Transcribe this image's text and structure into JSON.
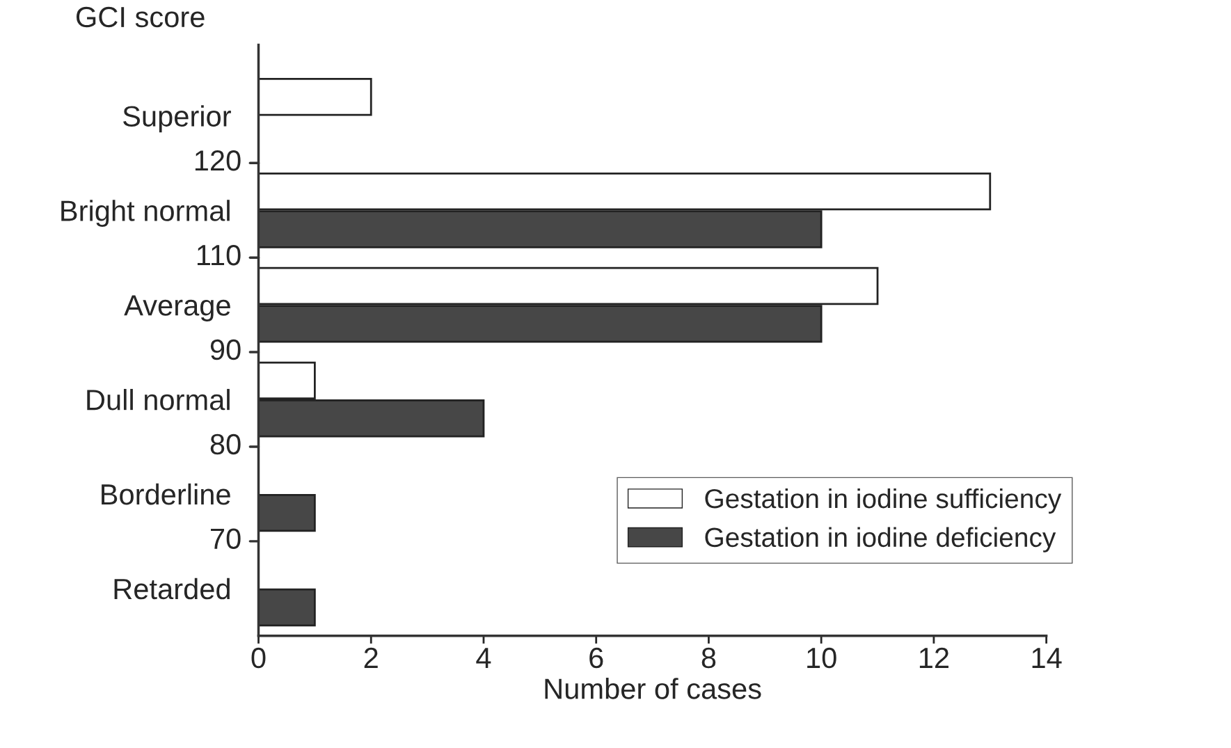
{
  "chart_data": {
    "type": "bar",
    "orientation": "horizontal",
    "ylabel": "GCI score",
    "xlabel": "Number of cases",
    "categories": [
      "Superior",
      "Bright normal",
      "Average",
      "Dull normal",
      "Borderline",
      "Retarded"
    ],
    "series": [
      {
        "name": "Gestation in iodine sufficiency",
        "color": "#ffffff",
        "values": [
          2,
          13,
          11,
          1,
          null,
          null
        ]
      },
      {
        "name": "Gestation in iodine deficiency",
        "color": "#474747",
        "values": [
          null,
          10,
          10,
          4,
          1,
          1
        ]
      }
    ],
    "annotations": [
      "120",
      "110",
      "90",
      "80",
      "70"
    ],
    "xlim": [
      0,
      14
    ],
    "xticks": [
      0,
      2,
      4,
      6,
      8,
      10,
      12,
      14
    ],
    "grid": false,
    "legend": "bottom right"
  }
}
